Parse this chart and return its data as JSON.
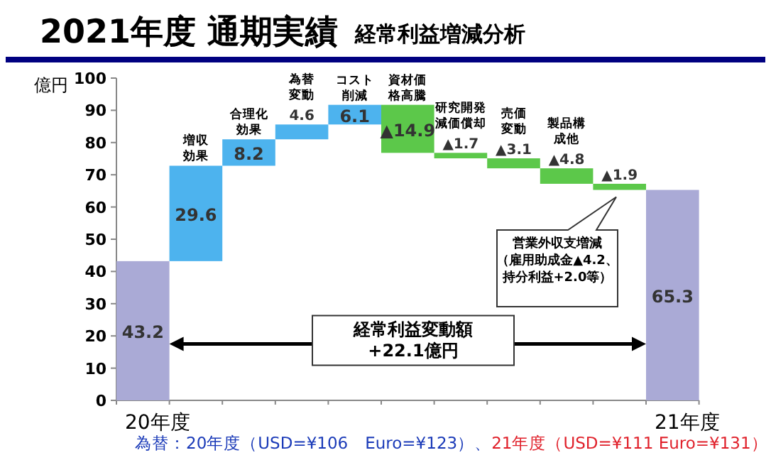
{
  "chart_data": {
    "type": "bar",
    "title": "2021年度 通期実績",
    "subtitle": "経常利益増減分析",
    "ylabel": "億円",
    "categories": [
      "20年度",
      "増収効果",
      "合理化効果",
      "為替変動",
      "コスト削減",
      "資材価格高騰",
      "研究開発減価償却",
      "売価変動",
      "製品構成他",
      null,
      "21年度"
    ],
    "values": [
      43.2,
      29.6,
      8.2,
      4.6,
      6.1,
      -14.9,
      -1.7,
      -3.1,
      -4.8,
      -1.9,
      65.3
    ],
    "base": [
      0,
      43.2,
      72.8,
      81.0,
      85.6,
      91.7,
      76.8,
      75.1,
      72.0,
      67.2,
      0
    ],
    "value_labels": [
      "43.2",
      "29.6",
      "8.2",
      "4.6",
      "6.1",
      "▲14.9",
      "▲1.7",
      "▲3.1",
      "▲4.8",
      "▲1.9",
      "65.3"
    ],
    "colors": [
      "#aaaad6",
      "#4db3ee",
      "#4db3ee",
      "#4db3ee",
      "#4db3ee",
      "#5cc84a",
      "#5cc84a",
      "#5cc84a",
      "#5cc84a",
      "#5cc84a",
      "#aaaad6"
    ],
    "ylim": [
      0,
      100
    ],
    "yticks": [
      0,
      10,
      20,
      30,
      40,
      50,
      60,
      70,
      80,
      90,
      100
    ],
    "annotations": [
      "営業外収支増減（雇用助成金▲4.2、持分利益+2.0等）",
      "経常利益変動額+22.1億円",
      "為替：20年度（USD=¥106　Euro=¥123）、",
      "21年度（USD=¥111 Euro=¥131）"
    ]
  }
}
